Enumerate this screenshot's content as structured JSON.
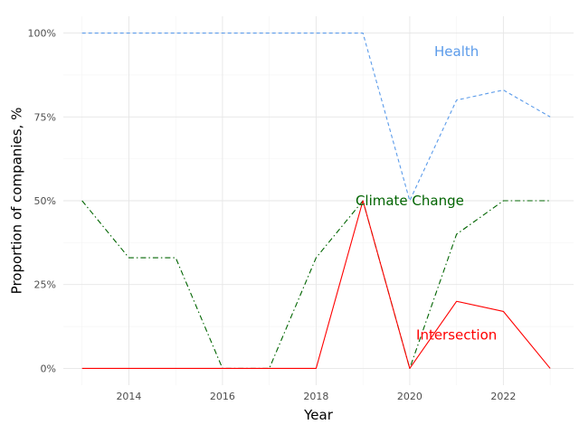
{
  "chart_data": {
    "type": "line",
    "title": "",
    "xlabel": "Year",
    "ylabel": "Proportion of companies, %",
    "xlim": [
      2012.6,
      2023.5
    ],
    "ylim": [
      -0.05,
      1.05
    ],
    "x_ticks": [
      2014,
      2016,
      2018,
      2020,
      2022
    ],
    "x_tick_labels": [
      "2014",
      "2016",
      "2018",
      "2020",
      "2022"
    ],
    "y_ticks": [
      0,
      0.25,
      0.5,
      0.75,
      1.0
    ],
    "y_tick_labels": [
      "0%",
      "25%",
      "50%",
      "75%",
      "100%"
    ],
    "grid": true,
    "legend": "none (direct labels)",
    "x": [
      2013,
      2014,
      2015,
      2016,
      2017,
      2018,
      2019,
      2020,
      2021,
      2022,
      2023
    ],
    "series": [
      {
        "name": "Health",
        "color": "#5b9bea",
        "dash": "dashed",
        "values": [
          1.0,
          1.0,
          1.0,
          1.0,
          1.0,
          1.0,
          1.0,
          0.5,
          0.8,
          0.83,
          0.75
        ],
        "label_x": 2021.0,
        "label_y": 0.945
      },
      {
        "name": "Climate Change",
        "color": "#006400",
        "dash": "dashdot",
        "values": [
          0.5,
          0.33,
          0.33,
          0.0,
          0.0,
          0.33,
          0.5,
          0.0,
          0.4,
          0.5,
          0.5
        ],
        "label_x": 2020.0,
        "label_y": 0.5
      },
      {
        "name": "Intersection",
        "color": "#ff0000",
        "dash": "solid",
        "values": [
          0.0,
          0.0,
          0.0,
          0.0,
          0.0,
          0.0,
          0.5,
          0.0,
          0.2,
          0.17,
          0.0
        ],
        "label_x": 2021.0,
        "label_y": 0.1
      }
    ]
  }
}
